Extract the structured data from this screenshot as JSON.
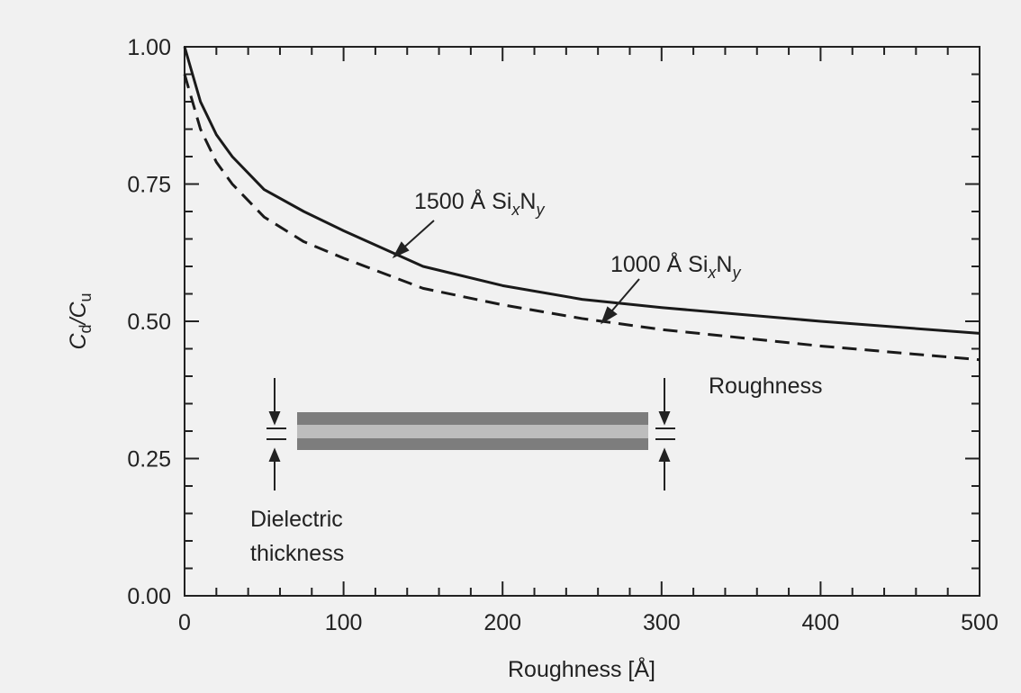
{
  "chart_data": {
    "type": "line",
    "x_label": "Roughness [Å]",
    "y_label": [
      "C",
      "d",
      "/C",
      "u"
    ],
    "xlim": [
      0,
      500
    ],
    "ylim": [
      0,
      1
    ],
    "xticks": [
      0,
      100,
      200,
      300,
      400,
      500
    ],
    "yticks": [
      {
        "value": 0,
        "label": "0.00"
      },
      {
        "value": 0.25,
        "label": "0.25"
      },
      {
        "value": 0.5,
        "label": "0.50"
      },
      {
        "value": 0.75,
        "label": "0.75"
      },
      {
        "value": 1,
        "label": "1.00"
      }
    ],
    "xminorticks": [
      20,
      40,
      60,
      80,
      120,
      140,
      160,
      180,
      220,
      240,
      260,
      280,
      320,
      340,
      360,
      380,
      420,
      440,
      460,
      480
    ],
    "yminorticks": [
      0.05,
      0.1,
      0.15,
      0.2,
      0.3,
      0.35,
      0.4,
      0.45,
      0.55,
      0.6,
      0.65,
      0.7,
      0.8,
      0.85,
      0.9,
      0.95
    ],
    "x": [
      0,
      10,
      20,
      30,
      50,
      75,
      100,
      150,
      200,
      250,
      300,
      400,
      500
    ],
    "series": [
      {
        "name": [
          "1500 Å Si",
          "x",
          "N",
          "y"
        ],
        "color": "#1a1a1a",
        "dash": false,
        "values": [
          1.0,
          0.9,
          0.84,
          0.8,
          0.74,
          0.7,
          0.665,
          0.6,
          0.565,
          0.54,
          0.525,
          0.5,
          0.478
        ]
      },
      {
        "name": [
          "1000 Å Si",
          "x",
          "N",
          "y"
        ],
        "color": "#1a1a1a",
        "dash": true,
        "values": [
          0.95,
          0.85,
          0.79,
          0.75,
          0.69,
          0.645,
          0.615,
          0.56,
          0.53,
          0.505,
          0.485,
          0.455,
          0.43
        ]
      }
    ],
    "annotations": [
      "Roughness",
      "Dielectric",
      "thickness"
    ]
  }
}
